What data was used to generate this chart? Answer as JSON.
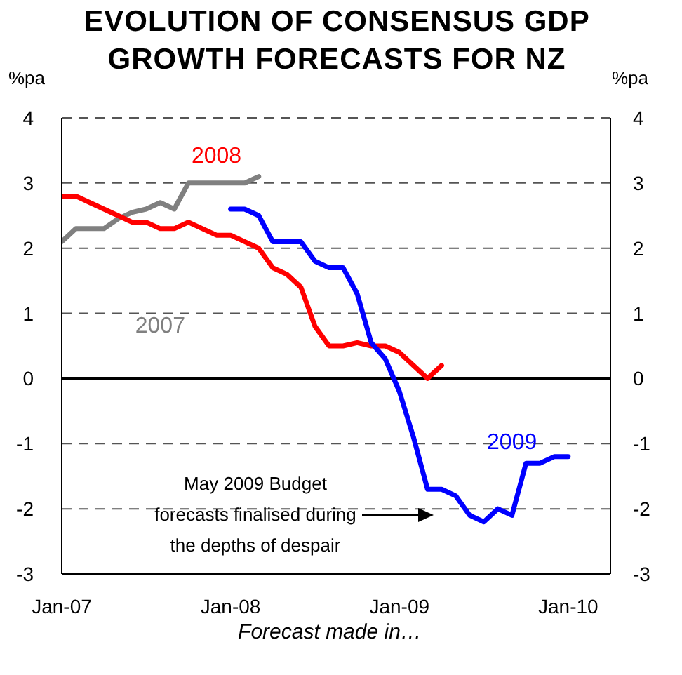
{
  "chart_data": {
    "type": "line",
    "title": "EVOLUTION OF CONSENSUS GDP GROWTH FORECASTS FOR NZ",
    "xlabel": "Forecast made in…",
    "ylabel": "%pa",
    "y2label": "%pa",
    "series": [
      {
        "name": "2007",
        "color": "#808080",
        "x": [
          "2007-01",
          "2007-02",
          "2007-03",
          "2007-04",
          "2007-05",
          "2007-06",
          "2007-07",
          "2007-08",
          "2007-09",
          "2007-10",
          "2007-11",
          "2007-12",
          "2008-01",
          "2008-02",
          "2008-03"
        ],
        "values": [
          2.1,
          2.3,
          2.3,
          2.3,
          2.45,
          2.55,
          2.6,
          2.7,
          2.6,
          3,
          3,
          3,
          3,
          3,
          3.1
        ]
      },
      {
        "name": "2008",
        "color": "#ff0000",
        "x": [
          "2007-01",
          "2007-02",
          "2007-03",
          "2007-04",
          "2007-05",
          "2007-06",
          "2007-07",
          "2007-08",
          "2007-09",
          "2007-10",
          "2007-11",
          "2007-12",
          "2008-01",
          "2008-02",
          "2008-03",
          "2008-04",
          "2008-05",
          "2008-06",
          "2008-07",
          "2008-08",
          "2008-09",
          "2008-10",
          "2008-11",
          "2008-12",
          "2009-01",
          "2009-02",
          "2009-03",
          "2009-04"
        ],
        "values": [
          2.8,
          2.8,
          2.7,
          2.6,
          2.5,
          2.4,
          2.4,
          2.3,
          2.3,
          2.4,
          2.3,
          2.2,
          2.2,
          2.1,
          2.0,
          1.7,
          1.6,
          1.4,
          0.8,
          0.5,
          0.5,
          0.55,
          0.5,
          0.5,
          0.4,
          0.2,
          0,
          0.2
        ]
      },
      {
        "name": "2009",
        "color": "#0000ff",
        "x": [
          "2008-01",
          "2008-02",
          "2008-03",
          "2008-04",
          "2008-05",
          "2008-06",
          "2008-07",
          "2008-08",
          "2008-09",
          "2008-10",
          "2008-11",
          "2008-12",
          "2009-01",
          "2009-02",
          "2009-03",
          "2009-04",
          "2009-05",
          "2009-06",
          "2009-07",
          "2009-08",
          "2009-09",
          "2009-10",
          "2009-11",
          "2009-12",
          "2010-01"
        ],
        "values": [
          2.6,
          2.6,
          2.5,
          2.1,
          2.1,
          2.1,
          1.8,
          1.7,
          1.7,
          1.3,
          0.55,
          0.3,
          -0.2,
          -0.9,
          -1.7,
          -1.7,
          -1.8,
          -2.1,
          -2.2,
          -2.0,
          -2.1,
          -1.3,
          -1.3,
          -1.2,
          -1.2
        ]
      }
    ],
    "xlim": [
      "2007-01",
      "2010-04"
    ],
    "xticks": [
      {
        "value": "2007-01",
        "label": "Jan-07"
      },
      {
        "value": "2008-01",
        "label": "Jan-08"
      },
      {
        "value": "2009-01",
        "label": "Jan-09"
      },
      {
        "value": "2010-01",
        "label": "Jan-10"
      }
    ],
    "ylim": [
      -3,
      4
    ],
    "yticks": [
      -3,
      -2,
      -1,
      0,
      1,
      2,
      3,
      4
    ],
    "y2lim": [
      -3,
      4
    ],
    "y2ticks": [
      -3,
      -2,
      -1,
      0,
      1,
      2,
      3,
      4
    ],
    "ref_lines": [
      {
        "axis": "y",
        "value": 0,
        "color": "#000000",
        "line_style": "solid"
      }
    ],
    "annotations": [
      "May 2009 Budget forecasts finalised during the depths of despair"
    ],
    "grid": "y",
    "marker": "none",
    "line_style": "solid"
  }
}
